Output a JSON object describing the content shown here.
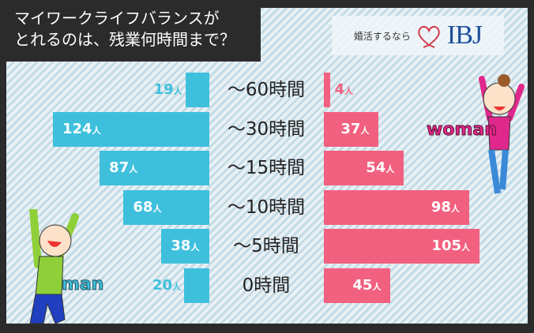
{
  "title_lines": [
    "マイワークライフバランスが",
    "とれるのは、残業何時間まで？"
  ],
  "logo": {
    "prefix": "婚活するなら",
    "brand": "IBJ"
  },
  "labels": {
    "man": "man",
    "woman": "woman"
  },
  "chart_data": {
    "type": "bar",
    "orientation": "horizontal-butterfly",
    "categories": [
      "〜60時間",
      "〜30時間",
      "〜15時間",
      "〜10時間",
      "〜5時間",
      "0時間"
    ],
    "unit": "人",
    "series": [
      {
        "name": "man",
        "values": [
          19,
          124,
          87,
          68,
          38,
          20
        ],
        "color": "#3ec0dd"
      },
      {
        "name": "woman",
        "values": [
          4,
          37,
          54,
          98,
          105,
          45
        ],
        "color": "#f2607f"
      }
    ]
  }
}
